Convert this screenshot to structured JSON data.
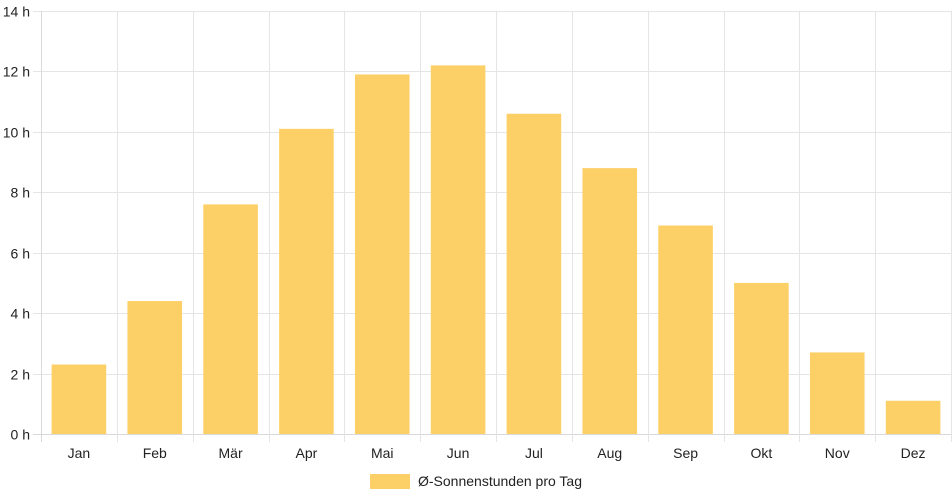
{
  "chart_data": {
    "type": "bar",
    "categories": [
      "Jan",
      "Feb",
      "Mär",
      "Apr",
      "Mai",
      "Jun",
      "Jul",
      "Aug",
      "Sep",
      "Okt",
      "Nov",
      "Dez"
    ],
    "series": [
      {
        "name": "Ø-Sonnenstunden pro Tag",
        "values": [
          2.3,
          4.4,
          7.6,
          10.1,
          11.9,
          12.2,
          10.6,
          8.8,
          6.9,
          5.0,
          2.7,
          1.1
        ]
      }
    ],
    "ylim": [
      0,
      14
    ],
    "ytick_step": 2,
    "ytick_suffix": " h",
    "grid": true,
    "legend_position": "bottom",
    "colors": {
      "bar": "#fdd067"
    }
  }
}
